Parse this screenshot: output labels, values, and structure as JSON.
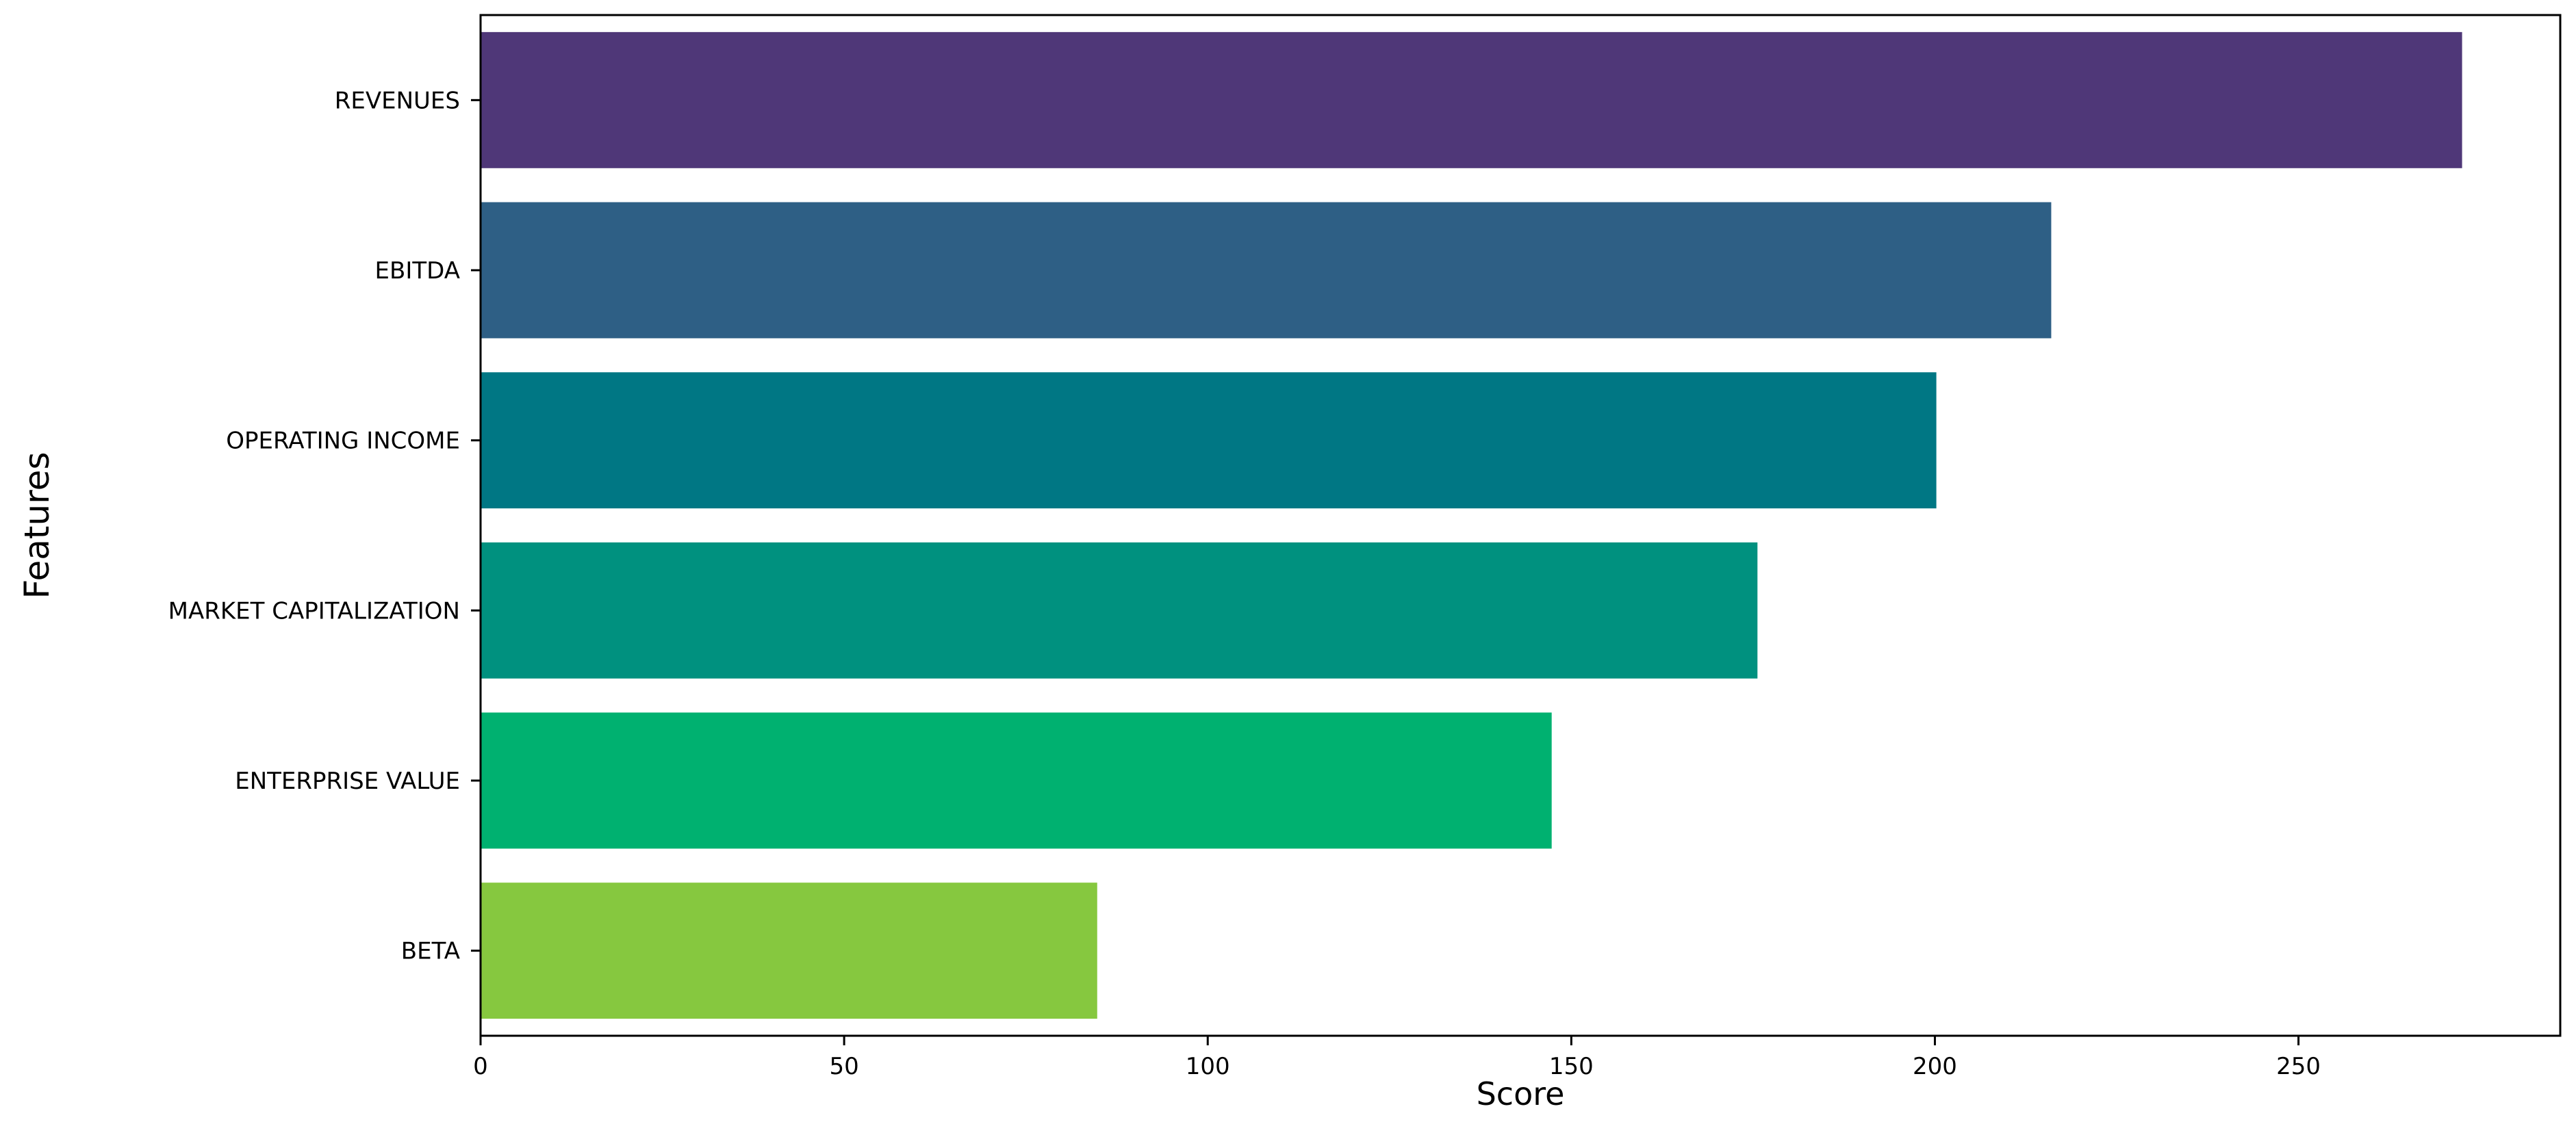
{
  "chart_data": {
    "type": "bar",
    "orientation": "horizontal",
    "title": "",
    "xlabel": "Score",
    "ylabel": "Features",
    "xlim": [
      0,
      286
    ],
    "xticks": [
      0,
      50,
      100,
      150,
      200,
      250
    ],
    "grid": false,
    "legend": "none",
    "categories": [
      "REVENUES",
      "EBITDA",
      "OPERATING INCOME",
      "MARKET CAPITALIZATION",
      "ENTERPRISE VALUE",
      "BETA"
    ],
    "values": [
      272.5,
      216,
      200.2,
      175.6,
      147.3,
      84.8
    ],
    "colors": [
      "#4f3778",
      "#2e5f85",
      "#007784",
      "#00917f",
      "#00b170",
      "#86c83f"
    ]
  }
}
